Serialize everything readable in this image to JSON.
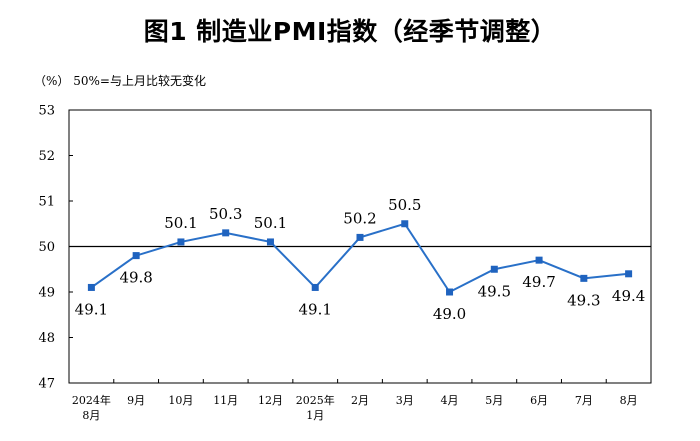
{
  "title": "图1  制造业PMI指数（经季节调整）",
  "note": "（%）  50%=与上月比较无变化",
  "chart_data": {
    "type": "line",
    "title": "图1  制造业PMI指数（经季节调整）",
    "ylabel": "（%）",
    "note": "50%=与上月比较无变化",
    "categories": [
      "2024年\n8月",
      "9月",
      "10月",
      "11月",
      "12月",
      "2025年\n1月",
      "2月",
      "3月",
      "4月",
      "5月",
      "6月",
      "7月",
      "8月"
    ],
    "series": [
      {
        "values": [
          49.1,
          49.8,
          50.1,
          50.3,
          50.1,
          49.1,
          50.2,
          50.5,
          49.0,
          49.5,
          49.7,
          49.3,
          49.4
        ]
      }
    ],
    "data_labels": [
      "49.1",
      "49.8",
      "50.1",
      "50.3",
      "50.1",
      "49.1",
      "50.2",
      "50.5",
      "49.0",
      "49.5",
      "49.7",
      "49.3",
      "49.4"
    ],
    "label_position": [
      "below",
      "below",
      "above",
      "above",
      "above",
      "below",
      "above",
      "above",
      "below",
      "below",
      "below",
      "below",
      "below"
    ],
    "ylim": [
      47,
      53
    ],
    "yticks": [
      "47",
      "48",
      "49",
      "50",
      "51",
      "52",
      "53"
    ],
    "reference_line": 50,
    "grid": false,
    "colors": {
      "line": "#2970c8",
      "marker": "#1f63bf",
      "axis": "#000000"
    }
  }
}
